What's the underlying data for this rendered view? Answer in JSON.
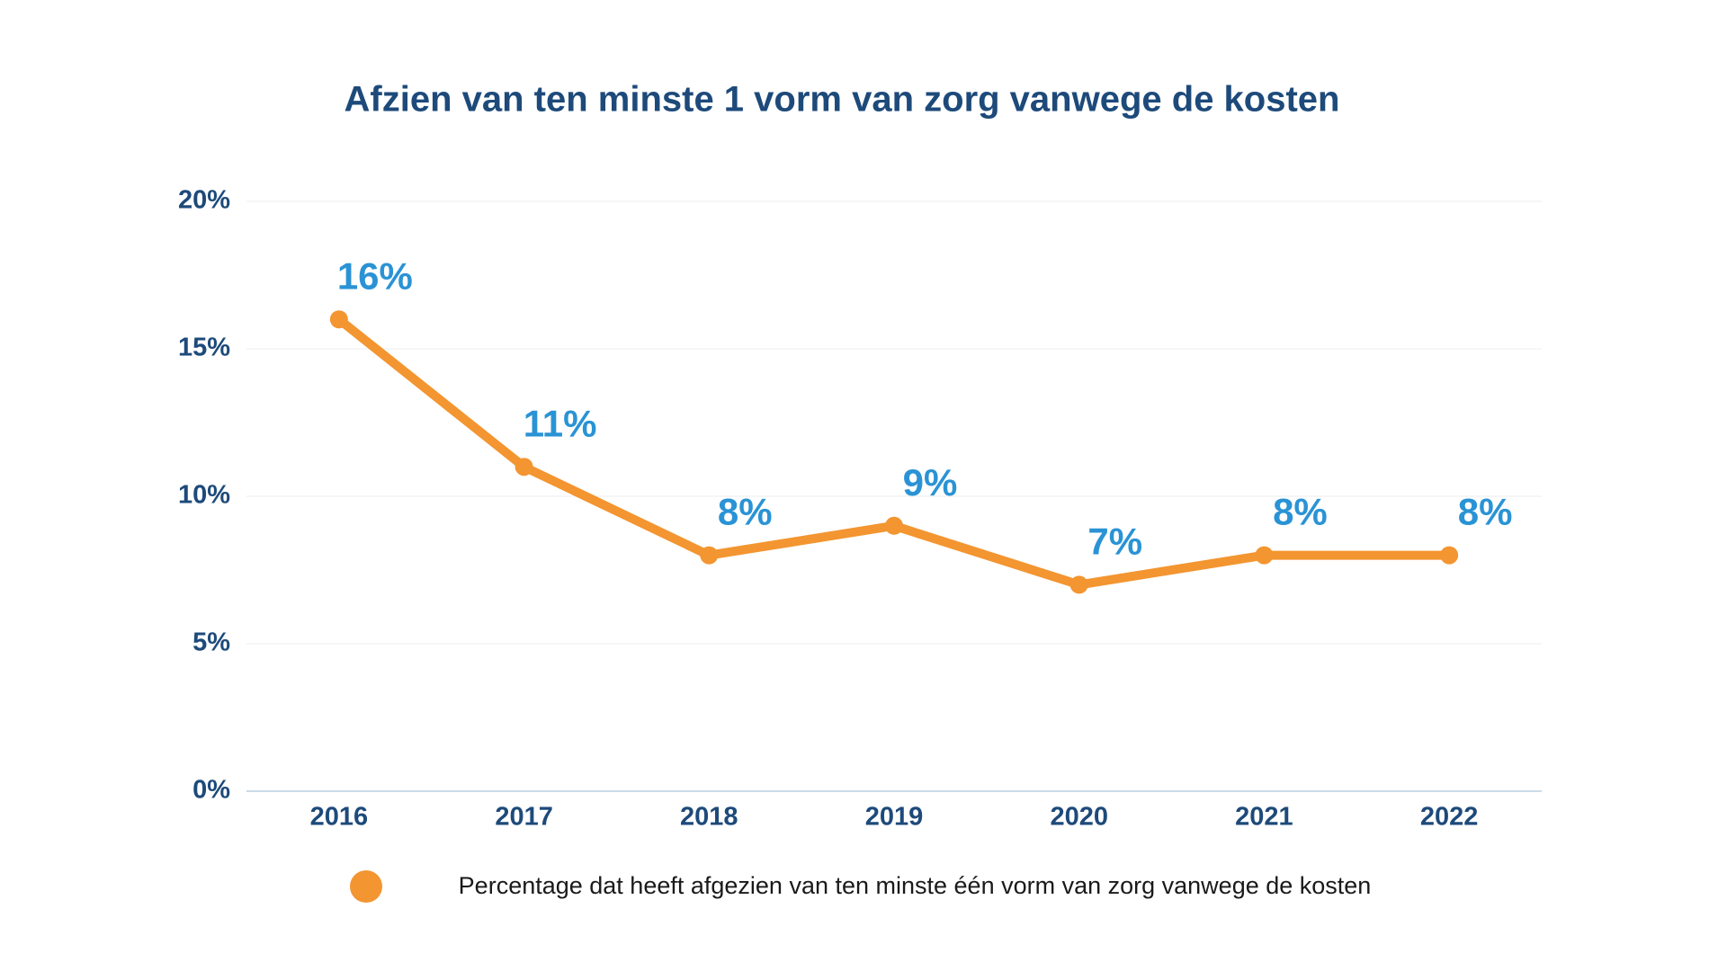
{
  "chart_data": {
    "type": "line",
    "title": "Afzien van ten minste 1 vorm van zorg vanwege de kosten",
    "categories": [
      "2016",
      "2017",
      "2018",
      "2019",
      "2020",
      "2021",
      "2022"
    ],
    "series": [
      {
        "name": "Percentage dat heeft afgezien van ten minste één vorm van zorg vanwege de kosten",
        "color": "#f39530",
        "values": [
          16,
          11,
          8,
          9,
          7,
          8,
          8
        ],
        "value_labels": [
          "16%",
          "11%",
          "8%",
          "9%",
          "7%",
          "8%",
          "8%"
        ]
      }
    ],
    "ylim": [
      0,
      20
    ],
    "yticks": [
      {
        "value": 0,
        "label": "0%"
      },
      {
        "value": 5,
        "label": "5%"
      },
      {
        "value": 10,
        "label": "10%"
      },
      {
        "value": 15,
        "label": "15%"
      },
      {
        "value": 20,
        "label": "20%"
      }
    ],
    "grid": true
  }
}
